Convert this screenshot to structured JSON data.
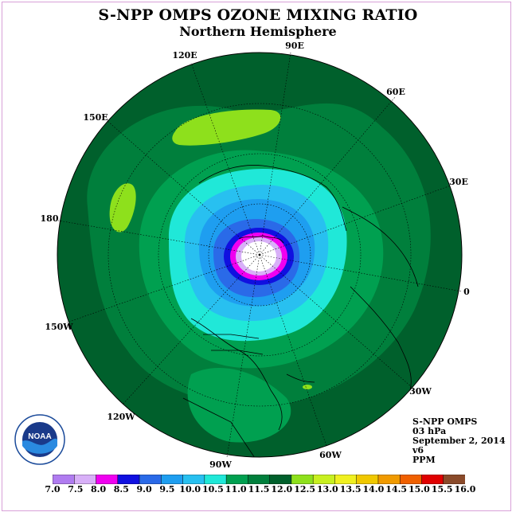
{
  "title": "S-NPP OMPS OZONE MIXING RATIO",
  "subtitle": "Northern Hemisphere",
  "longitude_labels": [
    "90E",
    "60E",
    "30E",
    "0",
    "30W",
    "60W",
    "90W",
    "120W",
    "150W",
    "180",
    "150E",
    "120E"
  ],
  "info": {
    "instrument": "S-NPP OMPS",
    "level": "03 hPa",
    "date": "September 2, 2014",
    "version": "v6",
    "units": "PPM"
  },
  "logo_text": "NOAA",
  "colorbar": {
    "ticks": [
      "7.0",
      "7.5",
      "8.0",
      "8.5",
      "9.0",
      "9.5",
      "10.0",
      "10.5",
      "11.0",
      "11.5",
      "12.0",
      "12.5",
      "13.0",
      "13.5",
      "14.0",
      "14.5",
      "15.0",
      "15.5",
      "16.0"
    ],
    "colors": [
      "#b07cf0",
      "#d8b0f8",
      "#f000f0",
      "#1010e0",
      "#2a6ae8",
      "#1e9ef0",
      "#28c0f0",
      "#20e8d8",
      "#00a050",
      "#007f3c",
      "#00602c",
      "#8ee01c",
      "#c8f020",
      "#f0f020",
      "#f0c800",
      "#f09a00",
      "#f06000",
      "#e00000",
      "#8a4a2a"
    ]
  },
  "map_data": {
    "projection": "north polar stereographic",
    "field": "ozone mixing ratio",
    "units": "PPM",
    "pressure_level": "3 hPa"
  }
}
